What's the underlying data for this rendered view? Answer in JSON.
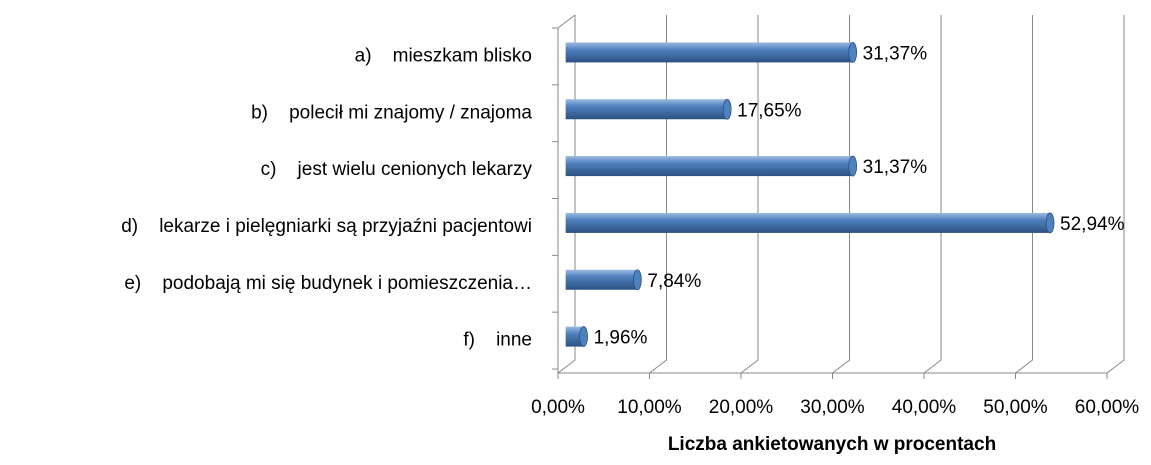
{
  "chart_data": {
    "type": "bar",
    "orientation": "horizontal",
    "categories": [
      "a)    mieszkam blisko",
      "b)    polecił mi znajomy / znajoma",
      "c)    jest wielu cenionych lekarzy",
      "d)    lekarze i pielęgniarki są przyjaźni pacjentowi",
      "e)    podobają mi się budynek i pomieszczenia…",
      "f)    inne"
    ],
    "values": [
      31.37,
      17.65,
      31.37,
      52.94,
      7.84,
      1.96
    ],
    "value_labels": [
      "31,37%",
      "17,65%",
      "31,37%",
      "52,94%",
      "7,84%",
      "1,96%"
    ],
    "color": "#4f81bd",
    "xlim": [
      0,
      60
    ],
    "xticks": [
      {
        "value": 0,
        "label": "0,00%"
      },
      {
        "value": 10,
        "label": "10,00%"
      },
      {
        "value": 20,
        "label": "20,00%"
      },
      {
        "value": 30,
        "label": "30,00%"
      },
      {
        "value": 40,
        "label": "40,00%"
      },
      {
        "value": 50,
        "label": "50,00%"
      },
      {
        "value": 60,
        "label": "60,00%"
      }
    ],
    "xlabel": "Liczba ankietowanych w procentach",
    "grid": true
  }
}
